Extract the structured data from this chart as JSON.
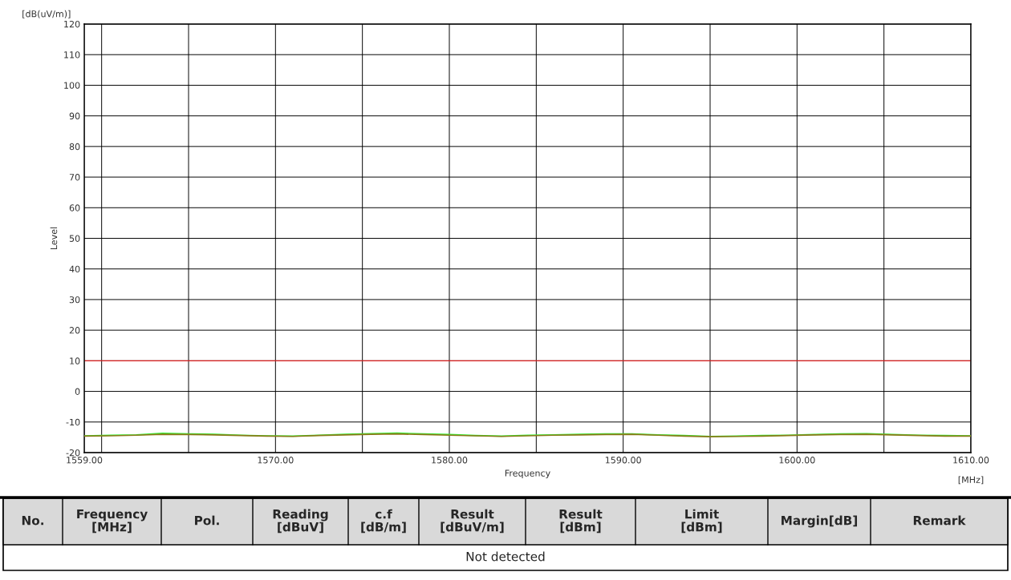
{
  "chart_data": {
    "type": "line",
    "xlabel": "Frequency",
    "ylabel": "Level",
    "annotations": [
      "[dB(uV/m)]",
      "[MHz]",
      "No.",
      "Frequency\n[MHz]",
      "Pol.",
      "Reading\n[dBuV]",
      "c.f\n[dB/m]",
      "Result\n[dBuV/m]",
      "Result\n[dBm]",
      "Limit\n[dBm]",
      "Margin[dB]",
      "Remark",
      "Not detected"
    ],
    "x": [
      1559,
      1560.5,
      1562,
      1563.5,
      1565,
      1566.5,
      1568,
      1569.5,
      1571,
      1572.5,
      1574,
      1575.5,
      1577,
      1578.5,
      1580,
      1581.5,
      1583,
      1584.5,
      1586,
      1587.5,
      1589,
      1590.5,
      1592,
      1593.5,
      1595,
      1596.5,
      1598,
      1599.5,
      1601,
      1602.5,
      1604,
      1605.5,
      1607,
      1608.5,
      1610
    ],
    "series": [
      {
        "color": "#33ee33",
        "values": [
          -14.5,
          -14.3,
          -14.2,
          -13.7,
          -13.9,
          -14.0,
          -14.3,
          -14.5,
          -14.6,
          -14.3,
          -14.0,
          -13.8,
          -13.6,
          -13.9,
          -14.1,
          -14.4,
          -14.6,
          -14.3,
          -14.2,
          -14.0,
          -13.9,
          -13.9,
          -14.2,
          -14.4,
          -14.7,
          -14.6,
          -14.4,
          -14.3,
          -14.1,
          -13.9,
          -13.8,
          -14.1,
          -14.3,
          -14.4,
          -14.5
        ]
      },
      {
        "color": "#8b7a1a",
        "values": [
          -14.6,
          -14.5,
          -14.3,
          -14.0,
          -14.1,
          -14.2,
          -14.4,
          -14.6,
          -14.7,
          -14.4,
          -14.2,
          -14.0,
          -13.9,
          -14.1,
          -14.3,
          -14.5,
          -14.7,
          -14.5,
          -14.3,
          -14.2,
          -14.1,
          -14.0,
          -14.3,
          -14.6,
          -14.8,
          -14.7,
          -14.6,
          -14.4,
          -14.2,
          -14.1,
          -14.0,
          -14.2,
          -14.4,
          -14.6,
          -14.6
        ]
      }
    ],
    "xlim": [
      1559,
      1610
    ],
    "xticks": [
      {
        "value": 1559,
        "label": "1559.00"
      },
      {
        "value": 1560,
        "label": null
      },
      {
        "value": 1565,
        "label": null
      },
      {
        "value": 1570,
        "label": "1570.00"
      },
      {
        "value": 1575,
        "label": null
      },
      {
        "value": 1580,
        "label": "1580.00"
      },
      {
        "value": 1585,
        "label": null
      },
      {
        "value": 1590,
        "label": "1590.00"
      },
      {
        "value": 1595,
        "label": null
      },
      {
        "value": 1600,
        "label": "1600.00"
      },
      {
        "value": 1605,
        "label": null
      },
      {
        "value": 1610,
        "label": "1610.00"
      }
    ],
    "ylim": [
      -20,
      120
    ],
    "yticks": [
      -20,
      -10,
      0,
      10,
      20,
      30,
      40,
      50,
      60,
      70,
      80,
      90,
      100,
      110,
      120
    ],
    "ref_lines": [
      {
        "axis": "y",
        "value": 10,
        "color": "#dd2222"
      }
    ],
    "grid": true
  }
}
